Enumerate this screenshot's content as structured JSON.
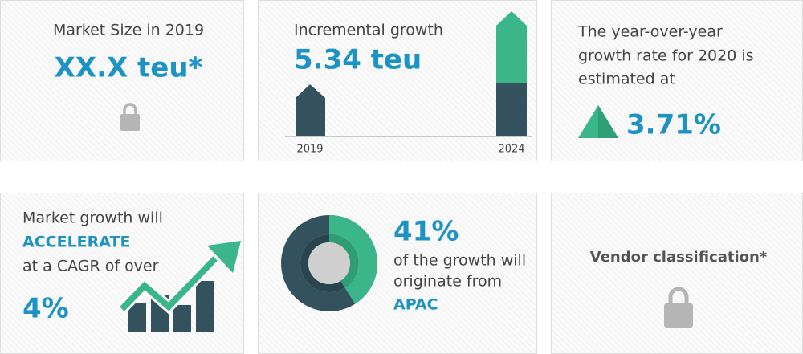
{
  "market_size": {
    "title": "Market Size in 2019",
    "value": "XX.X teu*"
  },
  "incremental": {
    "title": "Incremental growth",
    "value": "5.34 teu",
    "start_label": "2019",
    "end_label": "2024"
  },
  "yoy": {
    "lines": [
      "The year-over-year",
      "growth rate for 2020 is",
      "estimated at"
    ],
    "value": "3.71%"
  },
  "cagr": {
    "line1": "Market growth will",
    "highlight": "ACCELERATE",
    "line2": "at a CAGR of over",
    "value": "4%"
  },
  "region": {
    "value": 41,
    "label": "41%",
    "line1": "of the growth will",
    "line2": "originate from",
    "highlight": "APAC"
  },
  "vendor": {
    "title": "Vendor classification*"
  }
}
